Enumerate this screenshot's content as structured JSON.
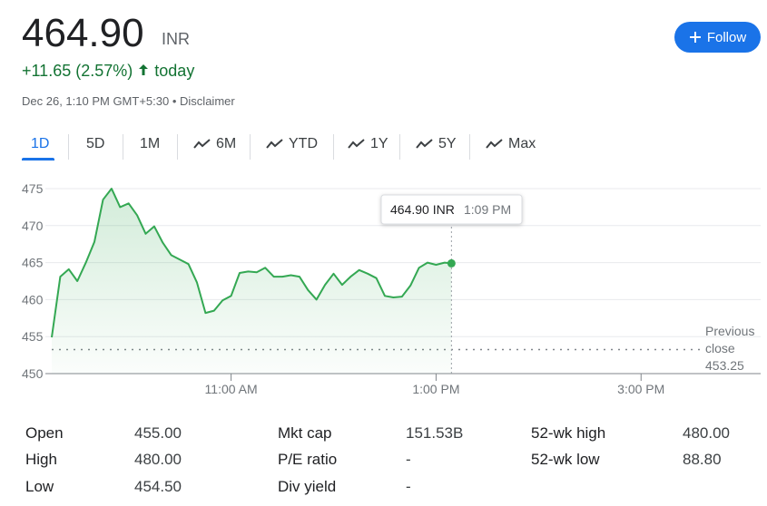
{
  "header": {
    "price": "464.90",
    "currency": "INR",
    "change": "+11.65 (2.57%)",
    "change_period": "today",
    "timestamp": "Dec 26, 1:10 PM GMT+5:30",
    "separator": "•",
    "disclaimer": "Disclaimer",
    "follow": "Follow"
  },
  "tabs": [
    "1D",
    "5D",
    "1M",
    "6M",
    "YTD",
    "1Y",
    "5Y",
    "Max"
  ],
  "chart_data": {
    "type": "line",
    "color": "#34a853",
    "x": [
      555,
      560,
      565,
      570,
      575,
      580,
      585,
      590,
      595,
      600,
      605,
      610,
      615,
      620,
      625,
      630,
      635,
      640,
      645,
      650,
      655,
      660,
      665,
      670,
      675,
      680,
      685,
      690,
      695,
      700,
      705,
      710,
      715,
      720,
      725,
      730,
      735,
      740,
      745,
      750,
      755,
      760,
      765,
      770,
      775,
      780,
      785,
      789
    ],
    "values": [
      454.9,
      463.1,
      464.1,
      462.5,
      465,
      467.8,
      473.5,
      475,
      472.5,
      473,
      471.4,
      468.9,
      469.9,
      467.7,
      466,
      465.4,
      464.8,
      462.3,
      458.2,
      458.5,
      459.9,
      460.5,
      463.6,
      463.8,
      463.7,
      464.3,
      463.1,
      463.1,
      463.3,
      463.1,
      461.3,
      460,
      462,
      463.5,
      462,
      463.1,
      464,
      463.5,
      462.9,
      460.5,
      460.3,
      460.4,
      461.9,
      464.3,
      465,
      464.7,
      465,
      464.9
    ],
    "xlim": [
      555,
      936
    ],
    "ylim": [
      450,
      475
    ],
    "xticks": [
      {
        "value": 660,
        "label": "11:00 AM"
      },
      {
        "value": 780,
        "label": "1:00 PM"
      },
      {
        "value": 900,
        "label": "3:00 PM"
      }
    ],
    "yticks": [
      450,
      455,
      460,
      465,
      470,
      475
    ],
    "grid": true,
    "previous_close": 453.25,
    "previous_close_label": "Previous close",
    "tooltip": {
      "value": "464.90 INR",
      "time": "1:09 PM"
    }
  },
  "stats": [
    [
      [
        "Open",
        "455.00"
      ],
      [
        "High",
        "480.00"
      ],
      [
        "Low",
        "454.50"
      ]
    ],
    [
      [
        "Mkt cap",
        "151.53B"
      ],
      [
        "P/E ratio",
        "-"
      ],
      [
        "Div yield",
        "-"
      ]
    ],
    [
      [
        "52-wk high",
        "480.00"
      ],
      [
        "52-wk low",
        "88.80"
      ]
    ]
  ]
}
